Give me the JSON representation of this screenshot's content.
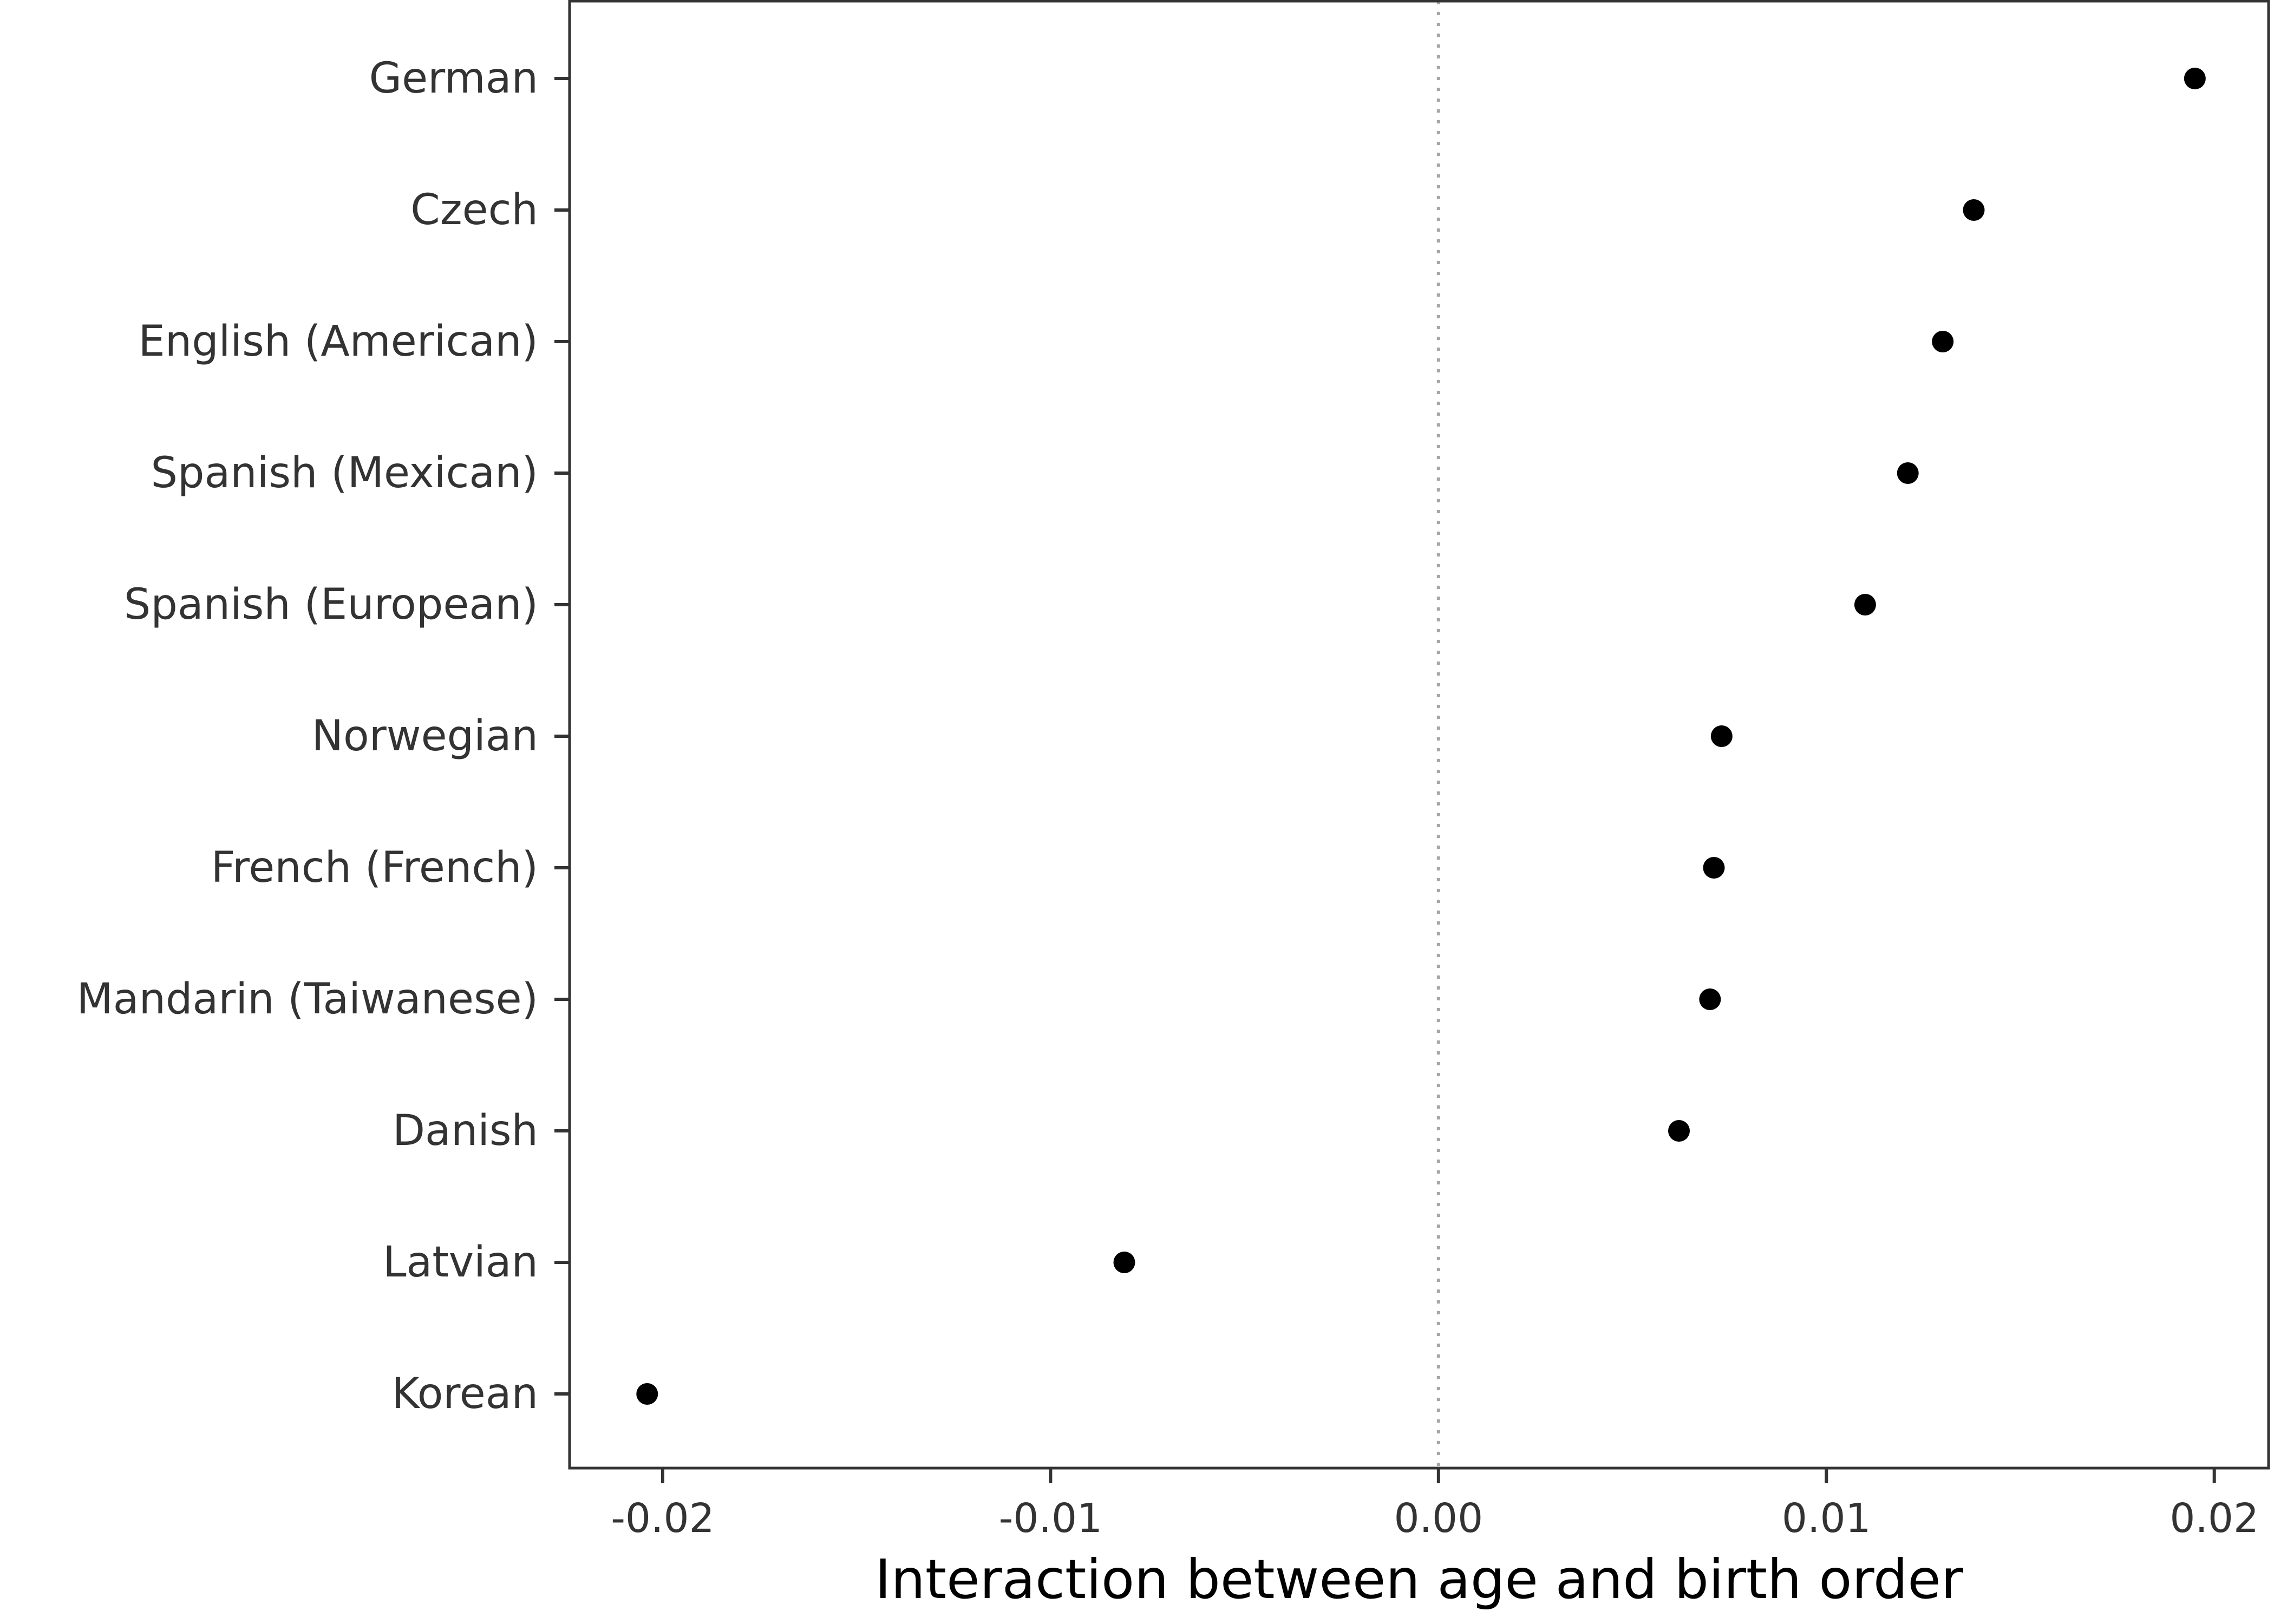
{
  "chart_data": {
    "type": "scatter",
    "title": "",
    "xlabel": "Interaction between age and birth order",
    "ylabel": "",
    "xlim": [
      -0.0224,
      0.0214
    ],
    "x_ticks": [
      -0.02,
      -0.01,
      0.0,
      0.01,
      0.02
    ],
    "x_tick_labels": [
      "-0.02",
      "-0.01",
      "0.00",
      "0.01",
      "0.02"
    ],
    "reference_line": 0.0,
    "grid": false,
    "legend": "none",
    "point_color": "#000000",
    "reference_line_color": "#a6a6a6",
    "frame_color": "#333333",
    "categories": [
      "German",
      "Czech",
      "English (American)",
      "Spanish (Mexican)",
      "Spanish (European)",
      "Norwegian",
      "French (French)",
      "Mandarin (Taiwanese)",
      "Danish",
      "Latvian",
      "Korean"
    ],
    "values": [
      0.0195,
      0.0138,
      0.013,
      0.0121,
      0.011,
      0.0073,
      0.0071,
      0.007,
      0.0062,
      -0.0081,
      -0.0204
    ]
  }
}
